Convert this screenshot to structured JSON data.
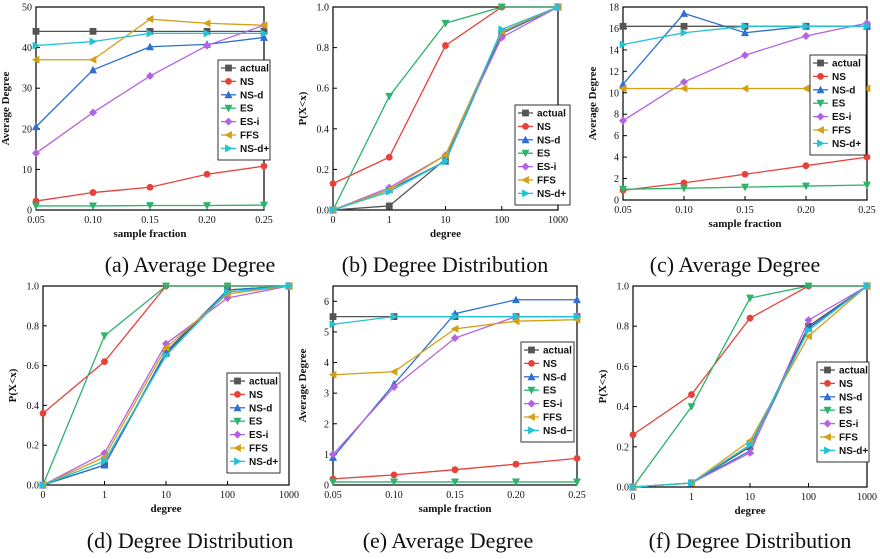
{
  "chart_data": [
    {
      "type": "line",
      "caption": "(a)   Average Degree",
      "xlabel": "sample fraction",
      "ylabel": "Average Degree",
      "x": [
        0.05,
        0.1,
        0.15,
        0.2,
        0.25
      ],
      "x_ticks": [
        "0.05",
        "0.10",
        "0.15",
        "0.20",
        "0.25"
      ],
      "ylim": [
        0,
        50
      ],
      "y_ticks": [
        "0",
        "10",
        "20",
        "30",
        "40",
        "50"
      ],
      "legend_position": "right",
      "series": [
        {
          "name": "actual",
          "color": "#555555",
          "marker": "square",
          "values": [
            44,
            44,
            44,
            44,
            44
          ]
        },
        {
          "name": "NS",
          "color": "#e8413a",
          "marker": "circle",
          "values": [
            2.2,
            4.3,
            5.6,
            8.8,
            10.8
          ]
        },
        {
          "name": "NS-d",
          "color": "#2e6fd1",
          "marker": "triangle-up",
          "values": [
            20.5,
            34.5,
            40.2,
            40.8,
            42.5
          ]
        },
        {
          "name": "ES",
          "color": "#2db36b",
          "marker": "triangle-down",
          "values": [
            1.0,
            1.0,
            1.1,
            1.1,
            1.2
          ]
        },
        {
          "name": "ES-i",
          "color": "#b562e0",
          "marker": "diamond",
          "values": [
            14,
            24,
            33,
            40.5,
            45.5
          ]
        },
        {
          "name": "FFS",
          "color": "#d4a017",
          "marker": "triangle-left",
          "values": [
            37,
            37,
            47,
            46,
            45.5
          ]
        },
        {
          "name": "NS-d+",
          "color": "#22c3d4",
          "marker": "triangle-right",
          "values": [
            40.5,
            41.5,
            43.5,
            43.5,
            43.5
          ]
        }
      ]
    },
    {
      "type": "line",
      "caption": "(b) Degree Distribution",
      "xlabel": "degree",
      "ylabel": "P(X<x)",
      "x": [
        0,
        1,
        10,
        100,
        1000
      ],
      "x_ticks": [
        "0",
        "1",
        "10",
        "100",
        "1000"
      ],
      "ylim": [
        0,
        1.0
      ],
      "y_ticks": [
        "0.0",
        "0.2",
        "0.4",
        "0.6",
        "0.8",
        "1.0"
      ],
      "legend_position": "right",
      "series": [
        {
          "name": "actual",
          "color": "#555555",
          "marker": "square",
          "values": [
            0.0,
            0.02,
            0.25,
            0.87,
            1.0
          ]
        },
        {
          "name": "NS",
          "color": "#e8413a",
          "marker": "circle",
          "values": [
            0.13,
            0.26,
            0.81,
            1.0,
            1.0
          ]
        },
        {
          "name": "NS-d",
          "color": "#2e6fd1",
          "marker": "triangle-up",
          "values": [
            0.0,
            0.1,
            0.24,
            0.87,
            1.0
          ]
        },
        {
          "name": "ES",
          "color": "#2db36b",
          "marker": "triangle-down",
          "values": [
            0.0,
            0.56,
            0.92,
            1.0,
            1.0
          ]
        },
        {
          "name": "ES-i",
          "color": "#b562e0",
          "marker": "diamond",
          "values": [
            0.0,
            0.11,
            0.27,
            0.85,
            1.0
          ]
        },
        {
          "name": "FFS",
          "color": "#d4a017",
          "marker": "triangle-left",
          "values": [
            0.0,
            0.1,
            0.27,
            0.88,
            1.0
          ]
        },
        {
          "name": "NS-d+",
          "color": "#22c3d4",
          "marker": "triangle-right",
          "values": [
            0.0,
            0.09,
            0.24,
            0.89,
            1.0
          ]
        }
      ]
    },
    {
      "type": "line",
      "caption": "(c) Average Degree",
      "xlabel": "sample fraction",
      "ylabel": "Average Degree",
      "x": [
        0.05,
        0.1,
        0.15,
        0.2,
        0.25
      ],
      "x_ticks": [
        "0.05",
        "0.10",
        "0.15",
        "0.20",
        "0.25"
      ],
      "ylim": [
        0,
        18
      ],
      "y_ticks": [
        "0",
        "2",
        "4",
        "6",
        "8",
        "10",
        "12",
        "14",
        "16",
        "18"
      ],
      "legend_position": "right",
      "series": [
        {
          "name": "actual",
          "color": "#555555",
          "marker": "square",
          "values": [
            16.2,
            16.2,
            16.2,
            16.2,
            16.2
          ]
        },
        {
          "name": "NS",
          "color": "#e8413a",
          "marker": "circle",
          "values": [
            0.9,
            1.6,
            2.4,
            3.2,
            4.0
          ]
        },
        {
          "name": "NS-d",
          "color": "#2e6fd1",
          "marker": "triangle-up",
          "values": [
            10.8,
            17.4,
            15.6,
            16.2,
            16.2
          ]
        },
        {
          "name": "ES",
          "color": "#2db36b",
          "marker": "triangle-down",
          "values": [
            1.0,
            1.1,
            1.2,
            1.3,
            1.4
          ]
        },
        {
          "name": "ES-i",
          "color": "#b562e0",
          "marker": "diamond",
          "values": [
            7.4,
            11.0,
            13.5,
            15.3,
            16.5
          ]
        },
        {
          "name": "FFS",
          "color": "#d4a017",
          "marker": "triangle-left",
          "values": [
            10.4,
            10.4,
            10.4,
            10.4,
            10.4
          ]
        },
        {
          "name": "NS-d+",
          "color": "#22c3d4",
          "marker": "triangle-right",
          "values": [
            14.5,
            15.6,
            16.2,
            16.2,
            16.2
          ]
        }
      ]
    },
    {
      "type": "line",
      "caption": "(d) Degree Distribution",
      "xlabel": "degree",
      "ylabel": "P(X<x)",
      "x": [
        0,
        1,
        10,
        100,
        1000
      ],
      "x_ticks": [
        "0",
        "1",
        "10",
        "100",
        "1000"
      ],
      "ylim": [
        0,
        1.0
      ],
      "y_ticks": [
        "0.0",
        "0.2",
        "0.4",
        "0.6",
        "0.8",
        "1.0"
      ],
      "legend_position": "right",
      "series": [
        {
          "name": "actual",
          "color": "#555555",
          "marker": "square",
          "values": [
            0.0,
            0.1,
            0.66,
            0.98,
            1.0
          ]
        },
        {
          "name": "NS",
          "color": "#e8413a",
          "marker": "circle",
          "values": [
            0.36,
            0.62,
            1.0,
            1.0,
            1.0
          ]
        },
        {
          "name": "NS-d",
          "color": "#2e6fd1",
          "marker": "triangle-up",
          "values": [
            0.0,
            0.1,
            0.67,
            0.98,
            1.0
          ]
        },
        {
          "name": "ES",
          "color": "#2db36b",
          "marker": "triangle-down",
          "values": [
            0.0,
            0.75,
            1.0,
            1.0,
            1.0
          ]
        },
        {
          "name": "ES-i",
          "color": "#b562e0",
          "marker": "diamond",
          "values": [
            0.0,
            0.16,
            0.71,
            0.94,
            1.0
          ]
        },
        {
          "name": "FFS",
          "color": "#d4a017",
          "marker": "triangle-left",
          "values": [
            0.0,
            0.14,
            0.69,
            0.96,
            1.0
          ]
        },
        {
          "name": "NS-d+",
          "color": "#22c3d4",
          "marker": "triangle-right",
          "values": [
            0.0,
            0.12,
            0.65,
            0.97,
            1.0
          ]
        }
      ]
    },
    {
      "type": "line",
      "caption": "(e) Average Degree",
      "xlabel": "sample fraction",
      "ylabel": "Average Degree",
      "x": [
        0.05,
        0.1,
        0.15,
        0.2,
        0.25
      ],
      "x_ticks": [
        "0.05",
        "0.10",
        "0.15",
        "0.20",
        "0.25"
      ],
      "ylim": [
        0,
        6.5
      ],
      "y_ticks": [
        "0",
        "1",
        "2",
        "3",
        "4",
        "5",
        "6"
      ],
      "legend_position": "right",
      "series": [
        {
          "name": "actual",
          "color": "#555555",
          "marker": "square",
          "values": [
            5.5,
            5.5,
            5.5,
            5.5,
            5.5
          ]
        },
        {
          "name": "NS",
          "color": "#e8413a",
          "marker": "circle",
          "values": [
            0.2,
            0.33,
            0.5,
            0.68,
            0.87
          ]
        },
        {
          "name": "NS-d",
          "color": "#2e6fd1",
          "marker": "triangle-up",
          "values": [
            0.9,
            3.3,
            5.6,
            6.05,
            6.05
          ]
        },
        {
          "name": "ES",
          "color": "#2db36b",
          "marker": "triangle-down",
          "values": [
            0.1,
            0.1,
            0.1,
            0.1,
            0.1
          ]
        },
        {
          "name": "ES-i",
          "color": "#b562e0",
          "marker": "diamond",
          "values": [
            1.0,
            3.2,
            4.8,
            5.5,
            5.5
          ]
        },
        {
          "name": "FFS",
          "color": "#d4a017",
          "marker": "triangle-left",
          "values": [
            3.6,
            3.7,
            5.1,
            5.35,
            5.4
          ]
        },
        {
          "name": "NS-d−",
          "color": "#22c3d4",
          "marker": "triangle-right",
          "values": [
            5.25,
            5.5,
            5.5,
            5.5,
            5.5
          ]
        }
      ]
    },
    {
      "type": "line",
      "caption": "(f) Degree Distribution",
      "xlabel": "degree",
      "ylabel": "P(X<x)",
      "x": [
        0,
        1,
        10,
        100,
        1000
      ],
      "x_ticks": [
        "0",
        "1",
        "10",
        "100",
        "1000"
      ],
      "ylim": [
        0,
        1.0
      ],
      "y_ticks": [
        "0.0",
        "0.2",
        "0.4",
        "0.6",
        "0.8",
        "1.0"
      ],
      "legend_position": "right",
      "series": [
        {
          "name": "actual",
          "color": "#555555",
          "marker": "square",
          "values": [
            0.0,
            0.02,
            0.2,
            0.8,
            1.0
          ]
        },
        {
          "name": "NS",
          "color": "#e8413a",
          "marker": "circle",
          "values": [
            0.26,
            0.46,
            0.84,
            1.0,
            1.0
          ]
        },
        {
          "name": "NS-d",
          "color": "#2e6fd1",
          "marker": "triangle-up",
          "values": [
            0.0,
            0.02,
            0.18,
            0.79,
            1.0
          ]
        },
        {
          "name": "ES",
          "color": "#2db36b",
          "marker": "triangle-down",
          "values": [
            0.0,
            0.4,
            0.94,
            1.0,
            1.0
          ]
        },
        {
          "name": "ES-i",
          "color": "#b562e0",
          "marker": "diamond",
          "values": [
            0.0,
            0.02,
            0.17,
            0.83,
            1.0
          ]
        },
        {
          "name": "FFS",
          "color": "#d4a017",
          "marker": "triangle-left",
          "values": [
            0.0,
            0.02,
            0.23,
            0.75,
            1.0
          ]
        },
        {
          "name": "NS-d+",
          "color": "#22c3d4",
          "marker": "triangle-right",
          "values": [
            0.0,
            0.02,
            0.21,
            0.78,
            1.0
          ]
        }
      ]
    }
  ]
}
